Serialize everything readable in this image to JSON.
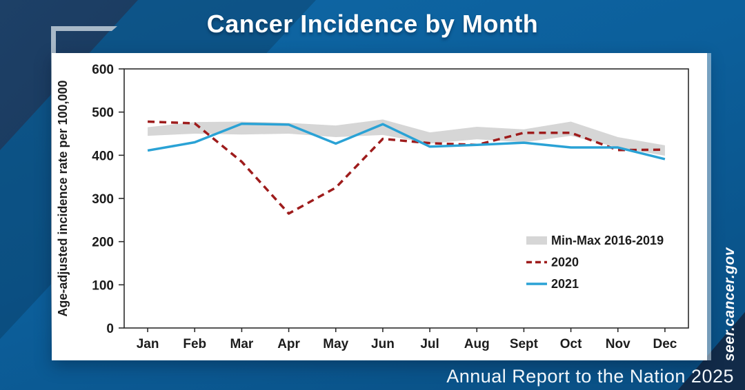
{
  "header": {
    "title": "Cancer Incidence by Month"
  },
  "footer": {
    "text": "Annual Report to the Nation 2025"
  },
  "watermark": {
    "text": "seer.cancer.gov"
  },
  "colors": {
    "background_medium_blue": "#0c5f9b",
    "background_dark_navy": "#16304f",
    "bracket_gray": "#a8b9c8",
    "band_gray": "#d6d6d6",
    "line_2020_red": "#9e1c1c",
    "line_2021_blue": "#2aa2d5",
    "axis_text": "#1c1c1c"
  },
  "chart_data": {
    "type": "line",
    "title": "Cancer Incidence by Month",
    "xlabel": "",
    "ylabel": "Age-adjusted incidence rate per 100,000",
    "ylim": [
      0,
      600
    ],
    "ytick_interval": 100,
    "yticks": [
      0,
      100,
      200,
      300,
      400,
      500,
      600
    ],
    "grid": false,
    "legend_position": "inside-lower-right",
    "categories": [
      "Jan",
      "Feb",
      "Mar",
      "Apr",
      "May",
      "Jun",
      "Jul",
      "Aug",
      "Sept",
      "Oct",
      "Nov",
      "Dec"
    ],
    "series": [
      {
        "name": "Min-Max 2016-2019",
        "kind": "band",
        "color": "#d6d6d6",
        "min": [
          445,
          450,
          448,
          450,
          442,
          447,
          427,
          437,
          430,
          445,
          418,
          399
        ],
        "max": [
          465,
          477,
          478,
          475,
          469,
          483,
          453,
          466,
          460,
          478,
          442,
          423
        ]
      },
      {
        "name": "2020",
        "kind": "line",
        "style": "dashed",
        "color": "#9e1c1c",
        "values": [
          478,
          474,
          385,
          265,
          325,
          438,
          428,
          424,
          452,
          452,
          412,
          413
        ]
      },
      {
        "name": "2021",
        "kind": "line",
        "style": "solid",
        "color": "#2aa2d5",
        "values": [
          411,
          430,
          473,
          471,
          427,
          472,
          420,
          424,
          429,
          418,
          418,
          391
        ]
      }
    ]
  }
}
